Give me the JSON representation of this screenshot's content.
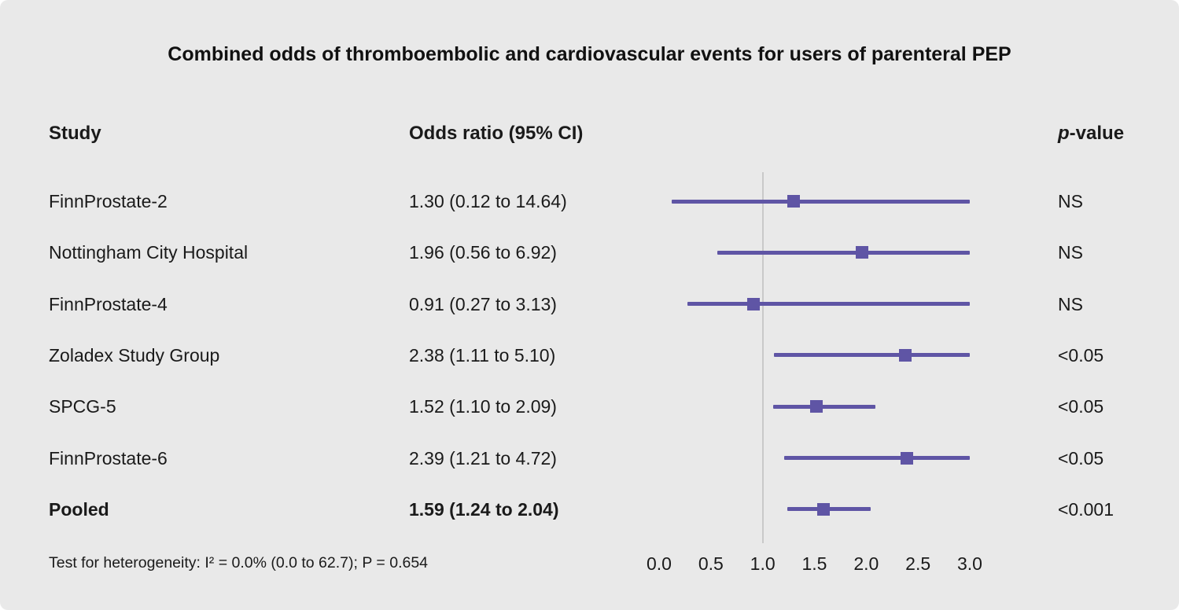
{
  "title": "Combined odds of thromboembolic and cardiovascular events for users of parenteral PEP",
  "columns": {
    "study": "Study",
    "odds_ratio": "Odds ratio (95% CI)",
    "p_header_italic": "p",
    "p_header_rest": "-value"
  },
  "footnote": "Test for heterogeneity: I² = 0.0% (0.0 to 62.7); P = 0.654",
  "colors": {
    "background": "#e9e9e9",
    "marker": "#5f55a5",
    "reference_line": "#c9c9c9",
    "text": "#1a1a1a"
  },
  "chart_data": {
    "type": "forest",
    "xlim": [
      0.0,
      3.0
    ],
    "ticks": [
      0.0,
      0.5,
      1.0,
      1.5,
      2.0,
      2.5,
      3.0
    ],
    "reference_line": 1.0,
    "grid": false,
    "rows": [
      {
        "study": "FinnProstate-2",
        "or_label": "1.30 (0.12 to 14.64)",
        "or": 1.3,
        "lo": 0.12,
        "hi": 14.64,
        "p": "NS",
        "bold": false
      },
      {
        "study": "Nottingham City Hospital",
        "or_label": "1.96 (0.56 to 6.92)",
        "or": 1.96,
        "lo": 0.56,
        "hi": 6.92,
        "p": "NS",
        "bold": false
      },
      {
        "study": "FinnProstate-4",
        "or_label": "0.91 (0.27 to 3.13)",
        "or": 0.91,
        "lo": 0.27,
        "hi": 3.13,
        "p": "NS",
        "bold": false
      },
      {
        "study": "Zoladex Study Group",
        "or_label": "2.38 (1.11 to 5.10)",
        "or": 2.38,
        "lo": 1.11,
        "hi": 5.1,
        "p": "<0.05",
        "bold": false
      },
      {
        "study": "SPCG-5",
        "or_label": "1.52 (1.10 to 2.09)",
        "or": 1.52,
        "lo": 1.1,
        "hi": 2.09,
        "p": "<0.05",
        "bold": false
      },
      {
        "study": "FinnProstate-6",
        "or_label": "2.39 (1.21 to 4.72)",
        "or": 2.39,
        "lo": 1.21,
        "hi": 4.72,
        "p": "<0.05",
        "bold": false
      },
      {
        "study": "Pooled",
        "or_label": "1.59 (1.24 to 2.04)",
        "or": 1.59,
        "lo": 1.24,
        "hi": 2.04,
        "p": "<0.001",
        "bold": true
      }
    ]
  }
}
